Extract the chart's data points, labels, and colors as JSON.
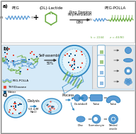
{
  "fig_width": 1.92,
  "fig_height": 1.89,
  "dpi": 100,
  "bg_color": "#ffffff",
  "peg_color": "#5b9bd5",
  "lac_color": "#70ad47",
  "bl": "#2e86c1",
  "grn": "#70ad47",
  "lt_bl": "#aed6f1",
  "rd": "#e74c3c",
  "dk_bl": "#1f618d",
  "arrow_c": "#2e86c1",
  "panel_bg_b": "#d6eaf8",
  "panel_bg_c": "#ffffff"
}
